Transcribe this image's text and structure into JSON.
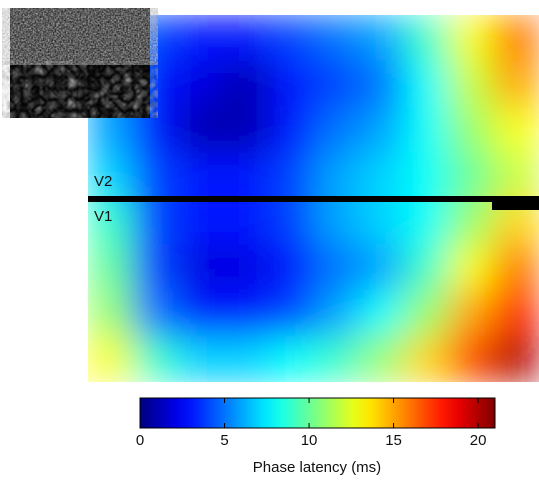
{
  "chart_data": {
    "type": "heatmap",
    "region_labels": [
      "V2",
      "V1"
    ],
    "z": [
      [
        6,
        4,
        3,
        3,
        4,
        5,
        6,
        9,
        13,
        16
      ],
      [
        6,
        3,
        2,
        1,
        3,
        4,
        5,
        8,
        12,
        15
      ],
      [
        6,
        3,
        1,
        1,
        3,
        5,
        6,
        8,
        11,
        13
      ],
      [
        7,
        4,
        3,
        3,
        4,
        6,
        7,
        8,
        10,
        12
      ],
      [
        9,
        4,
        3,
        3,
        4,
        6,
        7,
        8,
        11,
        14
      ],
      [
        10,
        4,
        2,
        2,
        3,
        5,
        6,
        9,
        13,
        16
      ],
      [
        11,
        5,
        3,
        3,
        4,
        6,
        8,
        11,
        15,
        18
      ],
      [
        13,
        9,
        7,
        7,
        8,
        9,
        11,
        14,
        17,
        20
      ]
    ],
    "colorbar": {
      "label": "Phase latency (ms)",
      "lim": [
        0,
        21
      ],
      "ticks": [
        0,
        5,
        10,
        15,
        20
      ]
    }
  }
}
